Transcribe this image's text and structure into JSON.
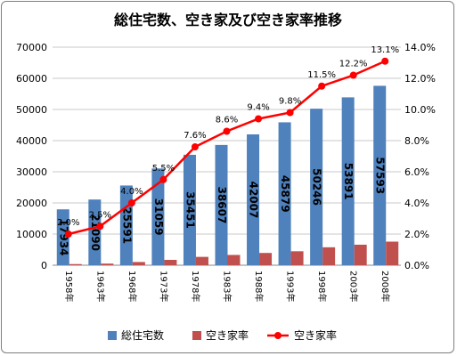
{
  "chart_data": {
    "type": "bar",
    "title": "総住宅数、空き家及び空き家率推移",
    "categories": [
      "1958年",
      "1963年",
      "1968年",
      "1973年",
      "1978年",
      "1983年",
      "1988年",
      "1993年",
      "1998年",
      "2003年",
      "2008年"
    ],
    "series": [
      {
        "name": "総住宅数",
        "type": "bar",
        "axis": "left",
        "color": "#4f81bd",
        "values": [
          17934,
          21090,
          25591,
          31059,
          35451,
          38607,
          42007,
          45879,
          50246,
          53891,
          57593
        ],
        "labels": [
          "17934",
          "21090",
          "25591",
          "31059",
          "35451",
          "38607",
          "42007",
          "45879",
          "50246",
          "53891",
          "57593"
        ]
      },
      {
        "name": "空き家率",
        "type": "bar",
        "axis": "left",
        "color": "#c0504d",
        "values": [
          360,
          520,
          1030,
          1720,
          2680,
          3300,
          3940,
          4480,
          5760,
          6590,
          7570
        ]
      },
      {
        "name": "空き家率",
        "type": "line",
        "axis": "right",
        "color": "#ff0000",
        "values": [
          2.0,
          2.5,
          4.0,
          5.5,
          7.6,
          8.6,
          9.4,
          9.8,
          11.5,
          12.2,
          13.1
        ],
        "labels": [
          "2.0%",
          "2.5%",
          "4.0%",
          "5.5%",
          "7.6%",
          "8.6%",
          "9.4%",
          "9.8%",
          "11.5%",
          "12.2%",
          "13.1%"
        ]
      }
    ],
    "ylim": [
      0,
      70000
    ],
    "y2lim": [
      0,
      14
    ],
    "yticks": [
      "0",
      "10000",
      "20000",
      "30000",
      "40000",
      "50000",
      "60000",
      "70000"
    ],
    "y2ticks": [
      "0.0%",
      "2.0%",
      "4.0%",
      "6.0%",
      "8.0%",
      "10.0%",
      "12.0%",
      "14.0%"
    ],
    "grid": true,
    "legend_position": "bottom"
  }
}
